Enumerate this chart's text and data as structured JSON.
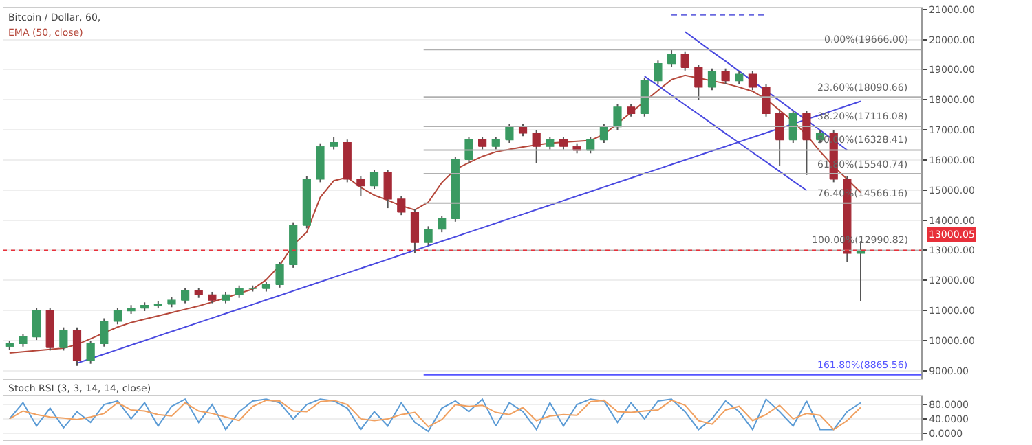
{
  "chart_data": [
    {
      "type": "candlestick",
      "title": "Bitcoin / Dollar, 60,",
      "categories": [
        null,
        null,
        null,
        null,
        null,
        null,
        null,
        null,
        null,
        null,
        null,
        null,
        null,
        null,
        null,
        null,
        null,
        null,
        null,
        null,
        null,
        null,
        null,
        null,
        null,
        null,
        null,
        null,
        null,
        null,
        null,
        null,
        null,
        null,
        null,
        null,
        null,
        null,
        null,
        null,
        null,
        null,
        null,
        null,
        null,
        null,
        null,
        null,
        null,
        null,
        null,
        null,
        null,
        null,
        null,
        null,
        null,
        null,
        null,
        null,
        null,
        null,
        null,
        null
      ],
      "ohlc": [
        [
          9800,
          10000,
          9700,
          9900
        ],
        [
          9900,
          10220,
          9800,
          10120
        ],
        [
          10120,
          11090,
          10020,
          10990
        ],
        [
          10990,
          11090,
          9670,
          9770
        ],
        [
          9770,
          10440,
          9670,
          10340
        ],
        [
          10340,
          10440,
          9160,
          9330
        ],
        [
          9330,
          10000,
          9230,
          9900
        ],
        [
          9900,
          10740,
          9800,
          10640
        ],
        [
          10640,
          11090,
          10540,
          10990
        ],
        [
          10990,
          11180,
          10890,
          11080
        ],
        [
          11080,
          11270,
          10980,
          11170
        ],
        [
          11170,
          11310,
          11070,
          11210
        ],
        [
          11210,
          11440,
          11110,
          11340
        ],
        [
          11340,
          11750,
          11240,
          11650
        ],
        [
          11650,
          11750,
          11420,
          11520
        ],
        [
          11520,
          11620,
          11240,
          11340
        ],
        [
          11340,
          11620,
          11240,
          11520
        ],
        [
          11520,
          11830,
          11420,
          11730
        ],
        [
          11730,
          11830,
          11630,
          11730
        ],
        [
          11730,
          11960,
          11630,
          11860
        ],
        [
          11860,
          12620,
          11760,
          12520
        ],
        [
          12520,
          13930,
          12420,
          13830
        ],
        [
          13830,
          15460,
          13730,
          15360
        ],
        [
          15360,
          16550,
          15260,
          16450
        ],
        [
          16450,
          16750,
          16350,
          16580
        ],
        [
          16580,
          16680,
          15260,
          15360
        ],
        [
          15360,
          15460,
          14800,
          15140
        ],
        [
          15140,
          15680,
          15040,
          15580
        ],
        [
          15580,
          15680,
          14400,
          14700
        ],
        [
          14700,
          14800,
          14170,
          14270
        ],
        [
          14270,
          14370,
          12900,
          13260
        ],
        [
          13260,
          13800,
          13160,
          13700
        ],
        [
          13700,
          14150,
          13600,
          14050
        ],
        [
          14050,
          16110,
          13950,
          16010
        ],
        [
          16010,
          16770,
          15910,
          16670
        ],
        [
          16670,
          16770,
          16350,
          16450
        ],
        [
          16450,
          16770,
          16350,
          16670
        ],
        [
          16670,
          17200,
          16570,
          17100
        ],
        [
          17100,
          17200,
          16790,
          16890
        ],
        [
          16890,
          16990,
          15900,
          16450
        ],
        [
          16450,
          16770,
          16350,
          16670
        ],
        [
          16670,
          16770,
          16350,
          16450
        ],
        [
          16450,
          16550,
          16220,
          16320
        ],
        [
          16320,
          16770,
          16220,
          16670
        ],
        [
          16670,
          17200,
          16570,
          17100
        ],
        [
          17100,
          17860,
          17000,
          17760
        ],
        [
          17760,
          17860,
          17440,
          17540
        ],
        [
          17540,
          18730,
          17440,
          18630
        ],
        [
          18630,
          19300,
          18530,
          19200
        ],
        [
          19200,
          19666,
          19100,
          19510
        ],
        [
          19510,
          19610,
          18970,
          19070
        ],
        [
          19070,
          19170,
          18000,
          18420
        ],
        [
          18420,
          19040,
          18320,
          18940
        ],
        [
          18940,
          19040,
          18530,
          18630
        ],
        [
          18630,
          18950,
          18530,
          18850
        ],
        [
          18850,
          18950,
          18320,
          18420
        ],
        [
          18420,
          18520,
          17440,
          17540
        ],
        [
          17540,
          17640,
          15800,
          16670
        ],
        [
          16670,
          17640,
          16570,
          17540
        ],
        [
          17540,
          17640,
          15500,
          16670
        ],
        [
          16670,
          16990,
          16570,
          16890
        ],
        [
          16890,
          16990,
          15260,
          15360
        ],
        [
          15360,
          15460,
          12600,
          12900
        ],
        [
          12900,
          13300,
          11300,
          13000
        ]
      ],
      "series": [
        {
          "type": "line",
          "name": "EMA (50, close)",
          "color": "#b5473a",
          "values": [
            9590,
            9630,
            9670,
            9710,
            9750,
            9870,
            10060,
            10260,
            10450,
            10600,
            10710,
            10820,
            10930,
            11040,
            11150,
            11280,
            11420,
            11570,
            11710,
            12020,
            12500,
            13180,
            13600,
            14760,
            15310,
            15420,
            15090,
            14830,
            14660,
            14480,
            14340,
            14600,
            15250,
            15690,
            15910,
            16120,
            16270,
            16350,
            16430,
            16500,
            16560,
            16590,
            16620,
            16650,
            16850,
            17210,
            17580,
            17940,
            18310,
            18670,
            18810,
            18720,
            18630,
            18540,
            18420,
            18280,
            18020,
            17650,
            17280,
            16830,
            16280,
            15790,
            15360,
            14920
          ]
        },
        {
          "type": "line",
          "color": "#4a4ae0",
          "values": [
            null,
            null,
            null,
            null,
            null,
            9250,
            9400,
            9550,
            9700,
            9850,
            10000,
            10150,
            10300,
            10450,
            10600,
            10750,
            10900,
            11050,
            11200,
            11350,
            11500,
            11650,
            11800,
            11950,
            12100,
            12250,
            12400,
            12550,
            12700,
            12850,
            13000,
            13150,
            13300,
            13450,
            13600,
            13750,
            13900,
            14050,
            14200,
            14350,
            14500,
            14650,
            14800,
            14950,
            15100,
            15250,
            15400,
            15550,
            15700,
            15850,
            16000,
            16150,
            16300,
            16450,
            16600,
            16750,
            16900,
            17050,
            17200,
            17350,
            17500,
            17650,
            17800,
            17950
          ]
        },
        {
          "type": "line",
          "color": "#4a4ae0",
          "values": [
            null,
            null,
            null,
            null,
            null,
            null,
            null,
            null,
            null,
            null,
            null,
            null,
            null,
            null,
            null,
            null,
            null,
            null,
            null,
            null,
            null,
            null,
            null,
            null,
            null,
            null,
            null,
            null,
            null,
            null,
            null,
            null,
            null,
            null,
            null,
            null,
            null,
            null,
            null,
            null,
            null,
            null,
            null,
            null,
            null,
            null,
            null,
            null,
            null,
            null,
            20260,
            19930,
            19600,
            19280,
            18950,
            18620,
            18300,
            17970,
            17640,
            17320,
            16990,
            16660,
            16330,
            null
          ]
        },
        {
          "type": "line",
          "color": "#4a4ae0",
          "values": [
            null,
            null,
            null,
            null,
            null,
            null,
            null,
            null,
            null,
            null,
            null,
            null,
            null,
            null,
            null,
            null,
            null,
            null,
            null,
            null,
            null,
            null,
            null,
            null,
            null,
            null,
            null,
            null,
            null,
            null,
            null,
            null,
            null,
            null,
            null,
            null,
            null,
            null,
            null,
            null,
            null,
            null,
            null,
            null,
            null,
            null,
            null,
            18780,
            18470,
            18150,
            17830,
            17520,
            17200,
            16880,
            16570,
            16250,
            15940,
            15620,
            15300,
            14990,
            null,
            null,
            null,
            null
          ]
        },
        {
          "type": "line",
          "color": "#6a6ae0",
          "line_style": "dashed",
          "values": [
            null,
            null,
            null,
            null,
            null,
            null,
            null,
            null,
            null,
            null,
            null,
            null,
            null,
            null,
            null,
            null,
            null,
            null,
            null,
            null,
            null,
            null,
            null,
            null,
            null,
            null,
            null,
            null,
            null,
            null,
            null,
            null,
            null,
            null,
            null,
            null,
            null,
            null,
            null,
            null,
            null,
            null,
            null,
            null,
            null,
            null,
            null,
            null,
            null,
            20820,
            20820,
            20820,
            20820,
            20820,
            20820,
            20820,
            20820,
            null,
            null,
            null,
            null,
            null,
            null,
            null
          ]
        }
      ],
      "ref_lines": [
        {
          "axis": "y",
          "value": 19666,
          "label": "0.00%(19666.00)",
          "color": "#b0b0b0"
        },
        {
          "axis": "y",
          "value": 18090.66,
          "label": "23.60%(18090.66)",
          "color": "#b0b0b0"
        },
        {
          "axis": "y",
          "value": 17116.08,
          "label": "38.20%(17116.08)",
          "color": "#b0b0b0"
        },
        {
          "axis": "y",
          "value": 16328.41,
          "label": "50.00%(16328.41)",
          "color": "#b0b0b0"
        },
        {
          "axis": "y",
          "value": 15540.74,
          "label": "61.80%(15540.74)",
          "color": "#b0b0b0"
        },
        {
          "axis": "y",
          "value": 14566.16,
          "label": "76.40%(14566.16)",
          "color": "#b0b0b0"
        },
        {
          "axis": "y",
          "value": 12990.82,
          "label": "100.00%(12990.82)",
          "color": "#b0b0b0"
        },
        {
          "axis": "y",
          "value": 8865.56,
          "label": "161.80%(8865.56)",
          "color": "#5555ff"
        },
        {
          "axis": "y",
          "value": 13000.05,
          "label": "13000.05",
          "color": "#e8303a",
          "line_style": "dotted"
        }
      ],
      "ylim": [
        8720,
        21040
      ],
      "yticks": [
        {
          "value": 9000,
          "label": "9000.00"
        },
        {
          "value": 10000,
          "label": "10000.00"
        },
        {
          "value": 11000,
          "label": "11000.00"
        },
        {
          "value": 12000,
          "label": "12000.00"
        },
        {
          "value": 13000,
          "label": "13000.00"
        },
        {
          "value": 14000,
          "label": "14000.00"
        },
        {
          "value": 15000,
          "label": "15000.00"
        },
        {
          "value": 16000,
          "label": "16000.00"
        },
        {
          "value": 17000,
          "label": "17000.00"
        },
        {
          "value": 18000,
          "label": "18000.00"
        },
        {
          "value": 19000,
          "label": "19000.00"
        },
        {
          "value": 20000,
          "label": "20000.00"
        },
        {
          "value": 21000,
          "label": "21000.00"
        }
      ],
      "tick_labels": "y",
      "grid": "y",
      "legend": false
    },
    {
      "type": "line",
      "title": "Stoch RSI (3, 3, 14, 14, close)",
      "categories": [
        null,
        null,
        null,
        null,
        null,
        null,
        null,
        null,
        null,
        null,
        null,
        null,
        null,
        null,
        null,
        null,
        null,
        null,
        null,
        null,
        null,
        null,
        null,
        null,
        null,
        null,
        null,
        null,
        null,
        null,
        null,
        null,
        null,
        null,
        null,
        null,
        null,
        null,
        null,
        null,
        null,
        null,
        null,
        null,
        null,
        null,
        null,
        null,
        null,
        null,
        null,
        null,
        null,
        null,
        null,
        null,
        null,
        null,
        null,
        null,
        null,
        null,
        null,
        null
      ],
      "series": [
        {
          "color": "#5b9bd5",
          "values": [
            40,
            85,
            20,
            70,
            15,
            60,
            30,
            80,
            90,
            40,
            85,
            20,
            75,
            95,
            30,
            80,
            10,
            60,
            90,
            95,
            85,
            40,
            80,
            95,
            90,
            70,
            10,
            60,
            20,
            85,
            30,
            5,
            70,
            90,
            60,
            95,
            20,
            85,
            60,
            10,
            85,
            20,
            80,
            95,
            90,
            30,
            85,
            40,
            90,
            95,
            60,
            10,
            40,
            90,
            60,
            10,
            95,
            60,
            20,
            90,
            10,
            10,
            60,
            85
          ]
        },
        {
          "color": "#f0a060",
          "values": [
            40,
            62,
            52,
            45,
            42,
            38,
            45,
            55,
            85,
            65,
            62,
            52,
            48,
            85,
            62,
            55,
            45,
            35,
            75,
            92,
            90,
            62,
            60,
            88,
            92,
            80,
            40,
            35,
            40,
            52,
            58,
            18,
            38,
            80,
            75,
            78,
            58,
            52,
            72,
            35,
            48,
            52,
            50,
            88,
            92,
            60,
            58,
            62,
            65,
            92,
            78,
            35,
            25,
            65,
            75,
            35,
            52,
            78,
            40,
            55,
            50,
            10,
            35,
            72
          ]
        }
      ],
      "ylim": [
        -18,
        103
      ],
      "yticks": [
        {
          "value": 0,
          "label": "0.0000"
        },
        {
          "value": 40,
          "label": "40.0000"
        },
        {
          "value": 80,
          "label": "80.0000"
        }
      ],
      "tick_labels": "y",
      "grid": "y",
      "legend": false
    }
  ]
}
